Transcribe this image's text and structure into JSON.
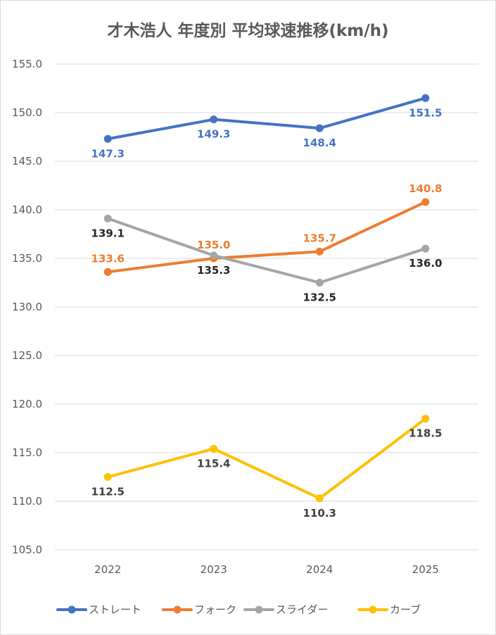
{
  "chart_data": {
    "type": "line",
    "title": "才木浩人 年度別 平均球速推移(km/h)",
    "categories": [
      "2022",
      "2023",
      "2024",
      "2025"
    ],
    "ylim": [
      105,
      155
    ],
    "yticks": [
      "105.0",
      "110.0",
      "115.0",
      "120.0",
      "125.0",
      "130.0",
      "135.0",
      "140.0",
      "145.0",
      "150.0",
      "155.0"
    ],
    "grid": true,
    "legend_position": "bottom",
    "series": [
      {
        "name": "ストレート",
        "color": "#4472c4",
        "label_color": "#4472c4",
        "label_weight": "bold",
        "label_pos": [
          "below",
          "below",
          "below",
          "below"
        ],
        "values": [
          147.3,
          149.3,
          148.4,
          151.5
        ],
        "labels": [
          "147.3",
          "149.3",
          "148.4",
          "151.5"
        ]
      },
      {
        "name": "フォーク",
        "color": "#ed7d31",
        "label_color": "#ed7d31",
        "label_weight": "normal",
        "label_pos": [
          "above",
          "above",
          "above",
          "above"
        ],
        "values": [
          133.6,
          135.0,
          135.7,
          140.8
        ],
        "labels": [
          "133.6",
          "135.0",
          "135.7",
          "140.8"
        ]
      },
      {
        "name": "スライダー",
        "color": "#a5a5a5",
        "label_color": "#262626",
        "label_weight": "bold",
        "label_pos": [
          "below",
          "below",
          "below",
          "below"
        ],
        "values": [
          139.1,
          135.3,
          132.5,
          136.0
        ],
        "labels": [
          "139.1",
          "135.3",
          "132.5",
          "136.0"
        ]
      },
      {
        "name": "カーブ",
        "color": "#ffc000",
        "label_color": "#404040",
        "label_weight": "normal",
        "label_pos": [
          "below",
          "below",
          "below",
          "below"
        ],
        "values": [
          112.5,
          115.4,
          110.3,
          118.5
        ],
        "labels": [
          "112.5",
          "115.4",
          "110.3",
          "118.5"
        ]
      }
    ]
  }
}
